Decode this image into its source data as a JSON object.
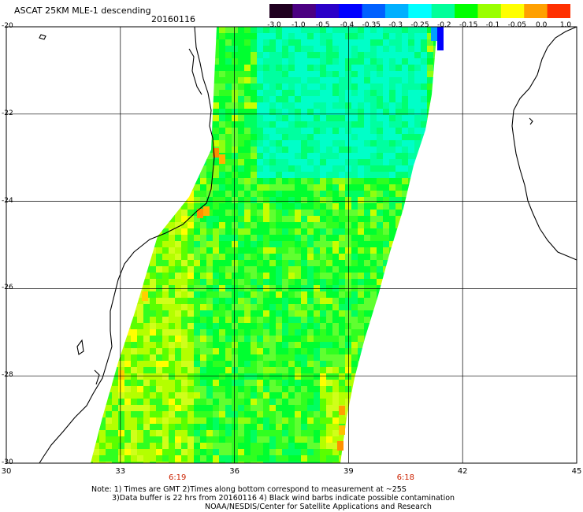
{
  "header": {
    "title": "ASCAT 25KM MLE-1 descending",
    "date": "20160116"
  },
  "colorbar": {
    "ticks": [
      "-3.0",
      "-1.0",
      "-0.5",
      "-0.4",
      "-0.35",
      "-0.3",
      "-0.25",
      "-0.2",
      "-0.15",
      "-0.1",
      "-0.05",
      "0.0",
      "1.0"
    ],
    "colors": [
      "#200020",
      "#4b0082",
      "#2a00c8",
      "#0000ff",
      "#0060ff",
      "#00b0ff",
      "#00ffff",
      "#00ff9a",
      "#00ff00",
      "#9aff00",
      "#ffff00",
      "#ffa000",
      "#ff3000"
    ]
  },
  "map": {
    "lat_labels": [
      "-20",
      "-22",
      "-24",
      "-26",
      "-28",
      "-30"
    ],
    "lon_labels": [
      "30",
      "33",
      "36",
      "39",
      "42",
      "45"
    ],
    "lat_range": [
      -30,
      -20
    ],
    "lon_range": [
      30,
      45
    ],
    "time_labels": [
      {
        "lon": 34.5,
        "text": "6:19"
      },
      {
        "lon": 40.5,
        "text": "6:18"
      }
    ]
  },
  "notes": {
    "line1": "Note: 1) Times are GMT 2)Times along bottom correspond to measurement at ~25S",
    "line2": "3)Data buffer is 22 hrs from 20160116 4) Black wind barbs indicate possible contamination",
    "line3": "NOAA/NESDIS/Center for Satellite Applications and Research"
  }
}
